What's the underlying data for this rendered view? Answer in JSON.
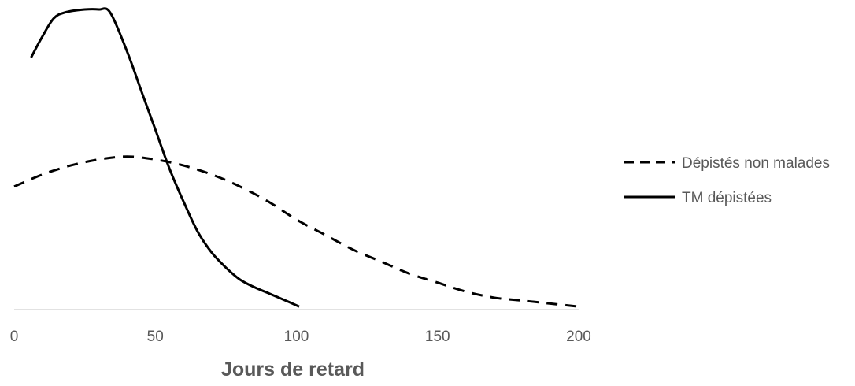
{
  "chart_data": {
    "type": "line",
    "title": "",
    "xlabel": "Jours de retard",
    "ylabel": "",
    "xlim": [
      0,
      200
    ],
    "ylim": [
      0,
      1.0
    ],
    "xticks": [
      "0",
      "50",
      "100",
      "150",
      "200"
    ],
    "grid": false,
    "y_axis_visible": false,
    "legend_position": "right",
    "series": [
      {
        "name": "Dépistés non malades",
        "style": "dashed",
        "color": "#000000",
        "x": [
          0,
          10,
          20,
          30,
          40,
          50,
          60,
          70,
          80,
          90,
          100,
          110,
          120,
          130,
          140,
          150,
          160,
          170,
          180,
          190,
          200
        ],
        "y": [
          0.41,
          0.45,
          0.48,
          0.5,
          0.51,
          0.5,
          0.48,
          0.45,
          0.41,
          0.36,
          0.3,
          0.25,
          0.2,
          0.16,
          0.12,
          0.09,
          0.06,
          0.04,
          0.03,
          0.02,
          0.01
        ]
      },
      {
        "name": "TM dépistées",
        "style": "solid",
        "color": "#000000",
        "x": [
          6,
          10,
          14,
          18,
          25,
          30,
          34,
          40,
          45,
          50,
          55,
          60,
          65,
          70,
          75,
          80,
          85,
          90,
          95,
          101
        ],
        "y": [
          0.84,
          0.91,
          0.97,
          0.99,
          1.0,
          1.0,
          0.99,
          0.86,
          0.73,
          0.6,
          0.47,
          0.36,
          0.26,
          0.19,
          0.14,
          0.1,
          0.075,
          0.055,
          0.035,
          0.01
        ]
      }
    ]
  }
}
